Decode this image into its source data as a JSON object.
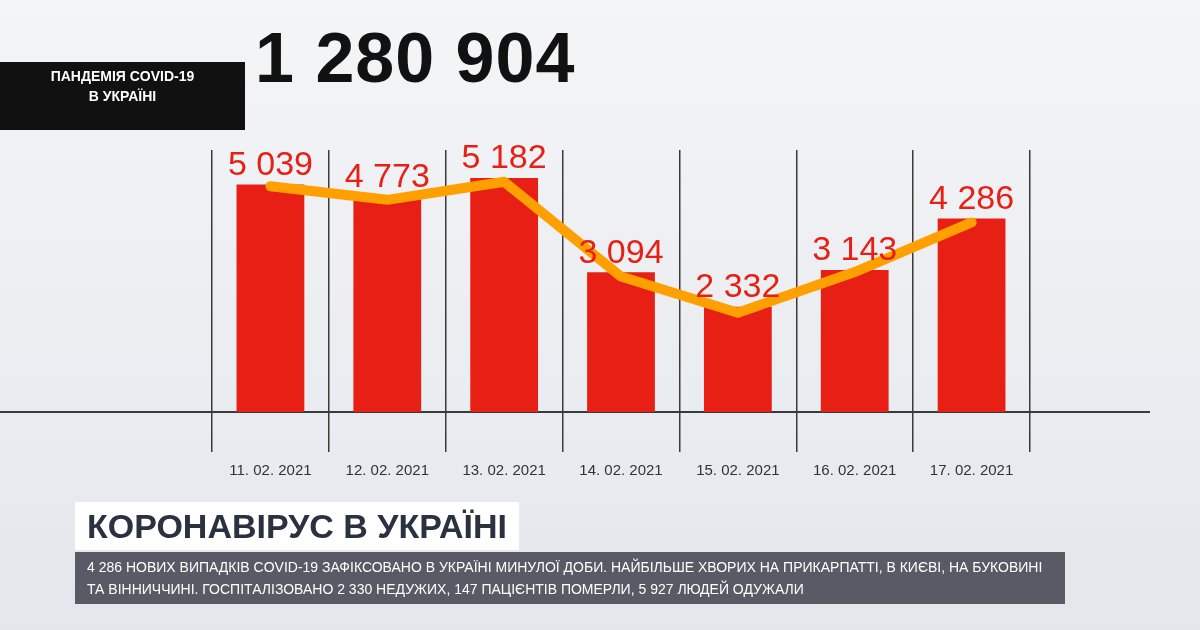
{
  "chart_data": {
    "type": "bar",
    "title": "КОРОНАВІРУС В УКРАЇНІ",
    "subtitle": "ПАНДЕМІЯ COVID-19 В УКРАЇНІ",
    "annotations": [
      "1 280 904",
      "4 286 НОВИХ ВИПАДКІВ COVID-19 ЗАФІКСОВАНО В УКРАЇНІ МИНУЛОЇ ДОБИ. НАЙБІЛЬШЕ ХВОРИХ НА ПРИКАРПАТТІ, В КИЄВІ, НА БУКОВИНІ ТА ВІННИЧЧИНІ. ГОСПІТАЛІЗОВАНО 2 330 НЕДУЖИХ, 147 ПАЦІЄНТІВ ПОМЕРЛИ,  5 927 ЛЮДЕЙ ОДУЖАЛИ"
    ],
    "categories": [
      "11. 02. 2021",
      "12. 02. 2021",
      "13. 02. 2021",
      "14. 02. 2021",
      "15. 02. 2021",
      "16. 02. 2021",
      "17. 02. 2021"
    ],
    "series": [
      {
        "color": "#e81f14",
        "values": [
          5039,
          4773,
          5182,
          3094,
          2332,
          3143,
          4286
        ],
        "value_labels": [
          "5 039",
          "4 773",
          "5 182",
          "3 094",
          "2 332",
          "3 143",
          "4 286"
        ]
      },
      {
        "type": "line",
        "color": "#ffa000",
        "values": [
          5000,
          4700,
          5100,
          3000,
          2200,
          3100,
          4200
        ]
      }
    ],
    "tick_labels": "x",
    "legend": false,
    "grid": "x"
  }
}
